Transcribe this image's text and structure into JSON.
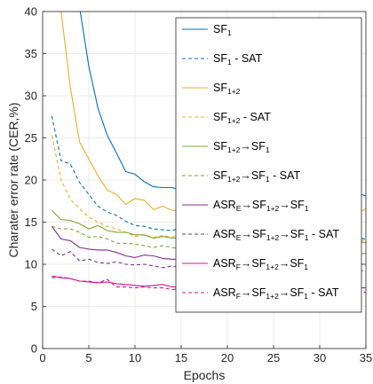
{
  "chart_data": {
    "type": "line",
    "xlabel": "Epochs",
    "ylabel": "Charater error rate (CER,%)",
    "xlim": [
      0,
      35
    ],
    "ylim": [
      0,
      40
    ],
    "xticks": [
      0,
      5,
      10,
      15,
      20,
      25,
      30,
      35
    ],
    "yticks": [
      0,
      5,
      10,
      15,
      20,
      25,
      30,
      35,
      40
    ],
    "grid": true,
    "legend_position": "top-right",
    "x": [
      1,
      2,
      3,
      4,
      5,
      6,
      7,
      8,
      9,
      10,
      11,
      12,
      13,
      14,
      15,
      16,
      17,
      18,
      19,
      20,
      21,
      22,
      23,
      24,
      25,
      26,
      27,
      28,
      29,
      30,
      31,
      32,
      33,
      34,
      35
    ],
    "series": [
      {
        "name": "SF_1",
        "label_parts": [
          [
            "SF",
            ""
          ],
          [
            "1",
            "sub"
          ]
        ],
        "color": "#0072BD",
        "dash": "solid",
        "values": [
          null,
          null,
          null,
          40.5,
          33.5,
          28.5,
          25.3,
          23.2,
          21.0,
          20.7,
          19.8,
          19.2,
          19.1,
          19.1,
          18.8,
          18.6,
          18.3,
          18.2,
          18.2,
          18.1,
          18.0,
          17.9,
          17.8,
          18.0,
          18.0,
          17.8,
          17.9,
          18.0,
          17.7,
          17.9,
          18.0,
          17.9,
          18.0,
          18.5,
          18.1
        ]
      },
      {
        "name": "SF_1 - SAT",
        "label_parts": [
          [
            "SF",
            ""
          ],
          [
            "1",
            "sub"
          ],
          [
            " - SAT",
            ""
          ]
        ],
        "color": "#0072BD",
        "dash": "dashed",
        "values": [
          27.6,
          22.3,
          21.9,
          19.7,
          18.3,
          16.9,
          16.2,
          15.8,
          15.1,
          14.6,
          14.5,
          14.2,
          14.1,
          14.0,
          14.3,
          13.8,
          13.7,
          14.0,
          13.7,
          13.6,
          13.5,
          13.8,
          13.4,
          13.2,
          13.3,
          13.5,
          13.2,
          13.1,
          13.3,
          13.2,
          13.1,
          13.2,
          13.0,
          13.1,
          13.0
        ]
      },
      {
        "name": "SF_1+2",
        "label_parts": [
          [
            "SF",
            ""
          ],
          [
            "1+2",
            "sub"
          ]
        ],
        "color": "#EDB120",
        "dash": "solid",
        "values": [
          null,
          40.0,
          31.0,
          24.5,
          22.5,
          20.5,
          18.8,
          18.3,
          17.1,
          17.8,
          17.6,
          16.5,
          16.9,
          16.4,
          16.4,
          16.2,
          16.6,
          16.5,
          16.4,
          16.1,
          16.3,
          16.0,
          15.8,
          16.1,
          16.2,
          16.4,
          15.9,
          16.2,
          16.0,
          15.7,
          16.1,
          15.9,
          16.3,
          16.0,
          16.6
        ]
      },
      {
        "name": "SF_1+2 - SAT",
        "label_parts": [
          [
            "SF",
            ""
          ],
          [
            "1+2",
            "sub"
          ],
          [
            " - SAT",
            ""
          ]
        ],
        "color": "#EDB120",
        "dash": "dashed",
        "values": [
          25.3,
          20.0,
          17.7,
          16.6,
          15.6,
          15.0,
          14.5,
          14.2,
          13.8,
          13.3,
          13.5,
          13.2,
          13.4,
          13.2,
          13.6,
          13.1,
          13.3,
          12.8,
          12.9,
          13.0,
          13.0,
          12.9,
          12.9,
          12.7,
          12.8,
          12.9,
          12.7,
          12.8,
          12.7,
          12.9,
          12.8,
          12.7,
          12.8,
          12.6,
          12.9
        ]
      },
      {
        "name": "SF_1+2→SF_1",
        "label_parts": [
          [
            "SF",
            ""
          ],
          [
            "1+2",
            "sub"
          ],
          [
            "→SF",
            ""
          ],
          [
            "1",
            "sub"
          ]
        ],
        "color": "#77AC30",
        "dash": "solid",
        "values": [
          16.4,
          15.3,
          15.2,
          14.8,
          14.2,
          14.6,
          14.0,
          13.8,
          13.8,
          13.5,
          13.5,
          13.1,
          13.3,
          13.1,
          13.2,
          13.0,
          12.9,
          12.9,
          12.6,
          12.8,
          12.7,
          12.6,
          12.8,
          12.5,
          12.7,
          12.6,
          12.6,
          12.9,
          12.5,
          12.6,
          12.6,
          12.8,
          12.3,
          12.6,
          12.6
        ]
      },
      {
        "name": "SF_1+2→SF_1 - SAT",
        "label_parts": [
          [
            "SF",
            ""
          ],
          [
            "1+2",
            "sub"
          ],
          [
            "→SF",
            ""
          ],
          [
            "1",
            "sub"
          ],
          [
            " - SAT",
            ""
          ]
        ],
        "color": "#77AC30",
        "dash": "dashed",
        "values": [
          14.5,
          14.2,
          14.2,
          13.8,
          13.2,
          13.3,
          13.0,
          12.5,
          12.5,
          12.4,
          12.2,
          12.0,
          12.2,
          12.0,
          11.8,
          11.7,
          11.9,
          11.6,
          11.7,
          11.5,
          11.6,
          11.4,
          11.6,
          11.3,
          11.5,
          11.3,
          11.4,
          11.5,
          11.2,
          11.3,
          11.4,
          11.2,
          11.4,
          11.2,
          11.3
        ]
      },
      {
        "name": "ASR_E→SF_1+2→SF_1",
        "label_parts": [
          [
            "ASR",
            ""
          ],
          [
            "E",
            "sub"
          ],
          [
            "→SF",
            ""
          ],
          [
            "1+2",
            "sub"
          ],
          [
            "→SF",
            ""
          ],
          [
            "1",
            "sub"
          ]
        ],
        "color": "#7E2F8E",
        "dash": "solid",
        "values": [
          14.5,
          13.0,
          12.8,
          12.0,
          11.8,
          11.7,
          11.7,
          11.4,
          11.0,
          10.8,
          11.1,
          11.0,
          10.7,
          10.6,
          10.6,
          10.8,
          10.3,
          10.5,
          10.6,
          10.0,
          10.5,
          10.2,
          10.1,
          10.4,
          10.3,
          10.1,
          10.2,
          10.2,
          10.0,
          9.8,
          10.2,
          10.1,
          10.0,
          10.0,
          10.0
        ]
      },
      {
        "name": "ASR_E→SF_1+2→SF_1 - SAT",
        "label_parts": [
          [
            "ASR",
            ""
          ],
          [
            "E",
            "sub"
          ],
          [
            "→SF",
            ""
          ],
          [
            "1+2",
            "sub"
          ],
          [
            "→SF",
            ""
          ],
          [
            "1",
            "sub"
          ],
          [
            " - SAT",
            ""
          ]
        ],
        "color": "#7E2F8E",
        "dash": "dashed",
        "values": [
          11.8,
          11.0,
          11.5,
          10.4,
          10.6,
          10.2,
          10.1,
          10.3,
          10.0,
          9.9,
          10.0,
          9.8,
          9.6,
          9.8,
          9.6,
          9.6,
          9.6,
          9.5,
          9.4,
          9.4,
          9.5,
          9.3,
          9.3,
          9.4,
          9.3,
          9.2,
          9.3,
          9.2,
          9.3,
          9.2,
          9.1,
          9.2,
          9.2,
          9.3,
          9.2
        ]
      },
      {
        "name": "ASR_F→SF_1+2→SF_1",
        "label_parts": [
          [
            "ASR",
            ""
          ],
          [
            "F",
            "sub"
          ],
          [
            "→SF",
            ""
          ],
          [
            "1+2",
            "sub"
          ],
          [
            "→SF",
            ""
          ],
          [
            "1",
            "sub"
          ]
        ],
        "color": "#D3129A",
        "dash": "solid",
        "values": [
          8.6,
          8.4,
          8.3,
          8.0,
          7.9,
          7.8,
          7.9,
          7.7,
          7.6,
          7.5,
          7.4,
          7.5,
          7.6,
          7.3,
          7.3,
          7.4,
          7.2,
          7.3,
          7.2,
          7.3,
          7.1,
          7.3,
          7.2,
          7.1,
          7.2,
          7.2,
          7.1,
          7.2,
          7.1,
          7.2,
          7.1,
          7.2,
          7.1,
          7.2,
          7.2
        ]
      },
      {
        "name": "ASR_F→SF_1+2→SF_1 - SAT",
        "label_parts": [
          [
            "ASR",
            ""
          ],
          [
            "F",
            "sub"
          ],
          [
            "→SF",
            ""
          ],
          [
            "1+2",
            "sub"
          ],
          [
            "→SF",
            ""
          ],
          [
            "1",
            "sub"
          ],
          [
            " - SAT",
            ""
          ]
        ],
        "color": "#D3129A",
        "dash": "dashed",
        "values": [
          8.4,
          8.5,
          8.3,
          8.0,
          8.0,
          7.8,
          8.2,
          7.3,
          7.3,
          7.2,
          7.3,
          7.2,
          7.2,
          7.0,
          7.1,
          7.0,
          7.0,
          6.9,
          6.9,
          6.8,
          7.0,
          6.9,
          6.8,
          6.9,
          6.8,
          6.9,
          6.8,
          6.8,
          6.9,
          6.7,
          6.8,
          6.7,
          6.8,
          6.7,
          6.7
        ]
      }
    ]
  }
}
